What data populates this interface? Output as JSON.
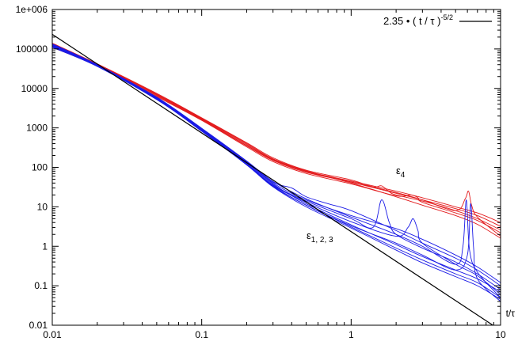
{
  "chart_data": {
    "type": "line",
    "xscale": "log",
    "yscale": "log",
    "xlim": [
      0.01,
      10
    ],
    "ylim": [
      0.01,
      1000000
    ],
    "x_ticks": [
      "0.01",
      "0.1",
      "1",
      "10"
    ],
    "y_ticks": [
      "0.01",
      "0.1",
      "1",
      "10",
      "100",
      "1000",
      "10000",
      "100000",
      "1e+006"
    ],
    "xlabel": "t/τ",
    "ylabel": "",
    "grid": false,
    "legend_position": "top-right",
    "reference_line": {
      "legend_prefix": "2.35 • ( t / τ )",
      "legend_exponent": "-5/2",
      "coefficient": 2.35,
      "exponent": -2.5,
      "color": "#000000"
    },
    "groups": [
      {
        "label_base": "ε",
        "label_sub": "4",
        "color": "#e31a1c",
        "series": [
          {
            "x": [
              0.01,
              0.02,
              0.05,
              0.1,
              0.2,
              0.3,
              0.5,
              1,
              2,
              3,
              5,
              7,
              10
            ],
            "y": [
              130000,
              40000,
              7000,
              1700,
              380,
              160,
              80,
              45,
              25,
              17,
              10,
              7,
              4
            ]
          },
          {
            "x": [
              0.01,
              0.02,
              0.05,
              0.1,
              0.2,
              0.3,
              0.5,
              1,
              2,
              3,
              5,
              7,
              10
            ],
            "y": [
              120000,
              38000,
              6500,
              1600,
              350,
              150,
              75,
              42,
              22,
              15,
              9,
              6,
              3.2
            ]
          },
          {
            "x": [
              0.01,
              0.02,
              0.05,
              0.1,
              0.2,
              0.3,
              0.5,
              1,
              1.4,
              1.6,
              1.8,
              2,
              3,
              5,
              7,
              10
            ],
            "y": [
              140000,
              42000,
              7500,
              1800,
              420,
              175,
              85,
              48,
              32,
              34,
              24,
              20,
              14,
              8,
              5,
              2.6
            ]
          },
          {
            "x": [
              0.01,
              0.02,
              0.05,
              0.1,
              0.2,
              0.3,
              0.5,
              1,
              2,
              2.5,
              2.8,
              3,
              5,
              7,
              10
            ],
            "y": [
              110000,
              37000,
              6200,
              1550,
              330,
              140,
              70,
              38,
              19,
              20,
              17,
              13,
              7,
              4.5,
              2.2
            ]
          },
          {
            "x": [
              0.01,
              0.02,
              0.05,
              0.1,
              0.2,
              0.3,
              0.5,
              1,
              2,
              3,
              5,
              5.8,
              6.1,
              6.4,
              7,
              10
            ],
            "y": [
              125000,
              39000,
              6800,
              1650,
              360,
              155,
              78,
              43,
              23,
              15,
              8,
              16,
              25,
              11,
              5.5,
              1.8
            ]
          },
          {
            "x": [
              0.01,
              0.02,
              0.05,
              0.1,
              0.2,
              0.3,
              0.5,
              1,
              2,
              3,
              5,
              7,
              10
            ],
            "y": [
              135000,
              41000,
              7200,
              1750,
              400,
              165,
              82,
              40,
              18,
              11,
              6,
              3.6,
              1.6
            ]
          }
        ]
      },
      {
        "label_base": "ε",
        "label_sub": "1, 2, 3",
        "color": "#1a1ae6",
        "series": [
          {
            "x": [
              0.01,
              0.02,
              0.05,
              0.1,
              0.2,
              0.3,
              0.5,
              1,
              2,
              3,
              5,
              7,
              10
            ],
            "y": [
              120000,
              38000,
              5500,
              900,
              130,
              38,
              12,
              3.5,
              1.1,
              0.55,
              0.25,
              0.15,
              0.07
            ]
          },
          {
            "x": [
              0.01,
              0.02,
              0.05,
              0.1,
              0.2,
              0.3,
              0.5,
              1,
              2,
              3,
              5,
              7,
              10
            ],
            "y": [
              110000,
              36000,
              5200,
              850,
              120,
              34,
              11,
              3.1,
              0.9,
              0.45,
              0.2,
              0.12,
              0.05
            ]
          },
          {
            "x": [
              0.01,
              0.02,
              0.05,
              0.1,
              0.2,
              0.3,
              0.4,
              0.5,
              0.7,
              1,
              2,
              3,
              5,
              7,
              10
            ],
            "y": [
              130000,
              39000,
              5800,
              950,
              140,
              42,
              30,
              18,
              12,
              8,
              2.5,
              1.2,
              0.5,
              0.25,
              0.1
            ]
          },
          {
            "x": [
              0.01,
              0.02,
              0.05,
              0.1,
              0.2,
              0.3,
              0.5,
              1,
              1.4,
              1.6,
              1.8,
              2,
              3,
              5,
              7,
              10
            ],
            "y": [
              125000,
              37500,
              5600,
              880,
              125,
              36,
              14,
              5,
              3,
              15,
              4,
              2,
              0.9,
              0.4,
              0.2,
              0.08
            ]
          },
          {
            "x": [
              0.01,
              0.02,
              0.05,
              0.1,
              0.2,
              0.3,
              0.5,
              1,
              2,
              2.4,
              2.6,
              2.8,
              3,
              5,
              7,
              10
            ],
            "y": [
              115000,
              37000,
              5400,
              870,
              122,
              35,
              13,
              4.2,
              1.8,
              3,
              5,
              2.5,
              1.2,
              0.35,
              0.18,
              0.06
            ]
          },
          {
            "x": [
              0.01,
              0.02,
              0.05,
              0.1,
              0.2,
              0.3,
              0.5,
              1,
              2,
              3,
              5,
              5.6,
              5.9,
              6.2,
              7,
              10
            ],
            "y": [
              135000,
              40000,
              6000,
              980,
              145,
              44,
              16,
              5.5,
              2,
              1,
              0.35,
              1,
              15,
              0.8,
              0.22,
              0.05
            ]
          },
          {
            "x": [
              0.01,
              0.02,
              0.05,
              0.1,
              0.2,
              0.3,
              0.5,
              1,
              2,
              3,
              5,
              6,
              6.3,
              6.6,
              7,
              10
            ],
            "y": [
              118000,
              37200,
              5450,
              860,
              118,
              33,
              11,
              3.3,
              1.2,
              0.6,
              0.25,
              0.6,
              12,
              0.9,
              0.15,
              0.04
            ]
          },
          {
            "x": [
              0.01,
              0.02,
              0.05,
              0.1,
              0.2,
              0.3,
              0.5,
              1,
              2,
              3,
              5,
              7,
              10
            ],
            "y": [
              128000,
              38500,
              5700,
              920,
              135,
              40,
              15,
              6,
              2.8,
              1.5,
              0.6,
              0.3,
              0.12
            ]
          },
          {
            "x": [
              0.01,
              0.02,
              0.05,
              0.1,
              0.2,
              0.3,
              0.5,
              1,
              2,
              3,
              5,
              7,
              10
            ],
            "y": [
              112000,
              36500,
              5300,
              820,
              115,
              32,
              10,
              2.9,
              0.8,
              0.38,
              0.17,
              0.1,
              0.045
            ]
          }
        ]
      }
    ]
  }
}
